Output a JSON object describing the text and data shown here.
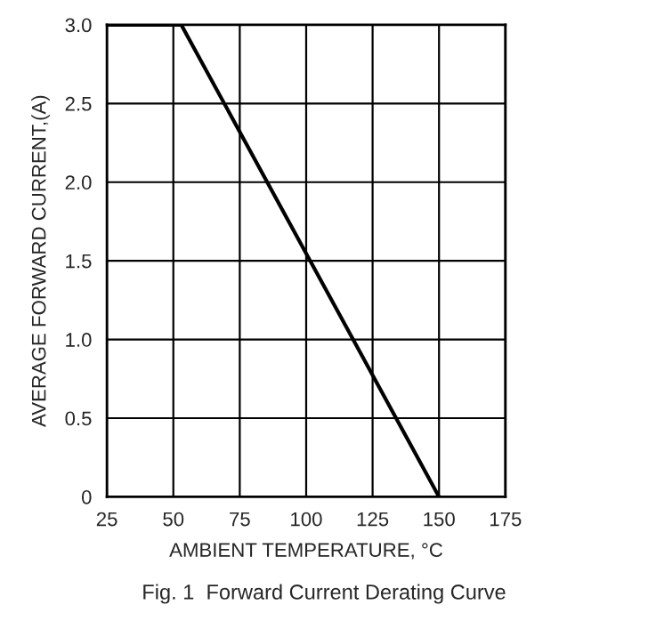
{
  "chart_data": {
    "type": "line",
    "xlabel": "AMBIENT TEMPERATURE, °C",
    "ylabel": "AVERAGE FORWARD CURRENT,(A)",
    "annotations": [
      "Fig. 1  Forward Current Derating Curve"
    ],
    "x": [
      25,
      53,
      150
    ],
    "series": [
      {
        "color": "#000000",
        "values": [
          3.0,
          3.0,
          0
        ]
      }
    ],
    "xlim": [
      25,
      175
    ],
    "xticks": [
      25,
      50,
      75,
      100,
      125,
      150,
      175
    ],
    "ylim": [
      0,
      3
    ],
    "yticks": [
      0,
      {
        "value": 0.5,
        "label": "0.5"
      },
      {
        "value": 1,
        "label": "1.0"
      },
      {
        "value": 1.5,
        "label": "1.5"
      },
      {
        "value": 2,
        "label": "2.0"
      },
      {
        "value": 2.5,
        "label": "2.5"
      },
      {
        "value": 3,
        "label": "3.0"
      }
    ],
    "grid": true,
    "line_style": "solid",
    "marker": "none"
  }
}
